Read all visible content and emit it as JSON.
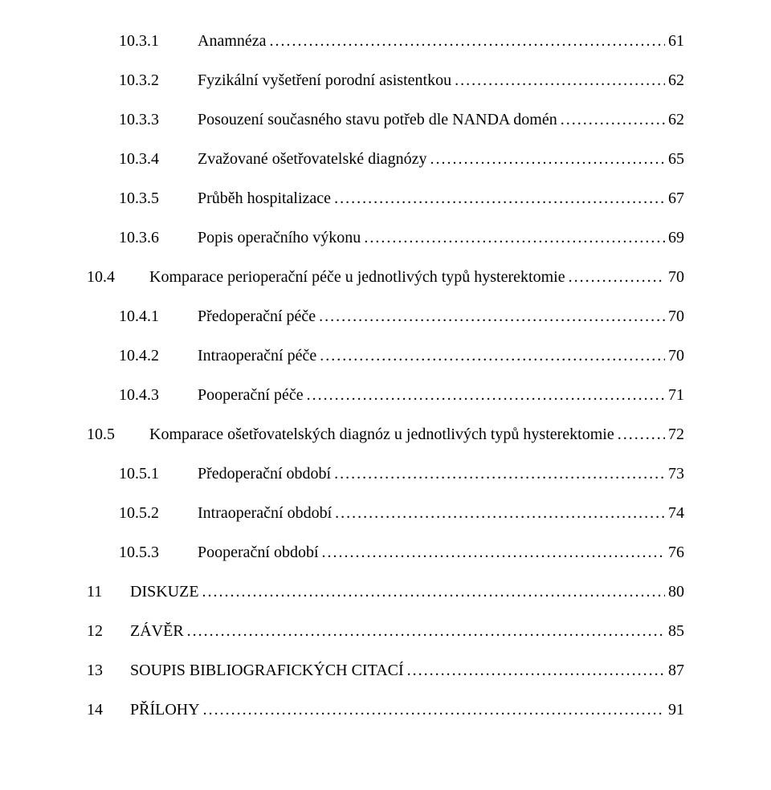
{
  "document": {
    "type": "table-of-contents",
    "font_family": "Times New Roman",
    "font_size_pt": 15,
    "text_color": "#000000",
    "background_color": "#ffffff",
    "leader_char": ".",
    "entries": [
      {
        "level": 3,
        "number": "10.3.1",
        "label": "Anamnéza",
        "page": "61"
      },
      {
        "level": 3,
        "number": "10.3.2",
        "label": "Fyzikální vyšetření porodní asistentkou",
        "page": "62"
      },
      {
        "level": 3,
        "number": "10.3.3",
        "label": "Posouzení současného stavu potřeb dle NANDA domén",
        "page": "62"
      },
      {
        "level": 3,
        "number": "10.3.4",
        "label": "Zvažované ošetřovatelské diagnózy",
        "page": "65"
      },
      {
        "level": 3,
        "number": "10.3.5",
        "label": "Průběh hospitalizace",
        "page": "67"
      },
      {
        "level": 3,
        "number": "10.3.6",
        "label": "Popis operačního výkonu",
        "page": "69"
      },
      {
        "level": 2,
        "number": "10.4",
        "label": "Komparace perioperační péče u jednotlivých typů hysterektomie",
        "page": "70"
      },
      {
        "level": 3,
        "number": "10.4.1",
        "label": "Předoperační péče",
        "page": "70"
      },
      {
        "level": 3,
        "number": "10.4.2",
        "label": "Intraoperační péče",
        "page": "70"
      },
      {
        "level": 3,
        "number": "10.4.3",
        "label": "Pooperační péče",
        "page": "71"
      },
      {
        "level": 2,
        "number": "10.5",
        "label": "Komparace ošetřovatelských diagnóz u jednotlivých typů hysterektomie",
        "page": "72"
      },
      {
        "level": 3,
        "number": "10.5.1",
        "label": "Předoperační období",
        "page": "73"
      },
      {
        "level": 3,
        "number": "10.5.2",
        "label": "Intraoperační období",
        "page": "74"
      },
      {
        "level": 3,
        "number": "10.5.3",
        "label": "Pooperační období",
        "page": "76"
      },
      {
        "level": 1,
        "number": "11",
        "label": "DISKUZE",
        "page": "80"
      },
      {
        "level": 1,
        "number": "12",
        "label": "ZÁVĚR",
        "page": "85"
      },
      {
        "level": 1,
        "number": "13",
        "label": "SOUPIS BIBLIOGRAFICKÝCH CITACÍ",
        "page": "87"
      },
      {
        "level": 1,
        "number": "14",
        "label": "PŘÍLOHY",
        "page": "91"
      }
    ]
  }
}
